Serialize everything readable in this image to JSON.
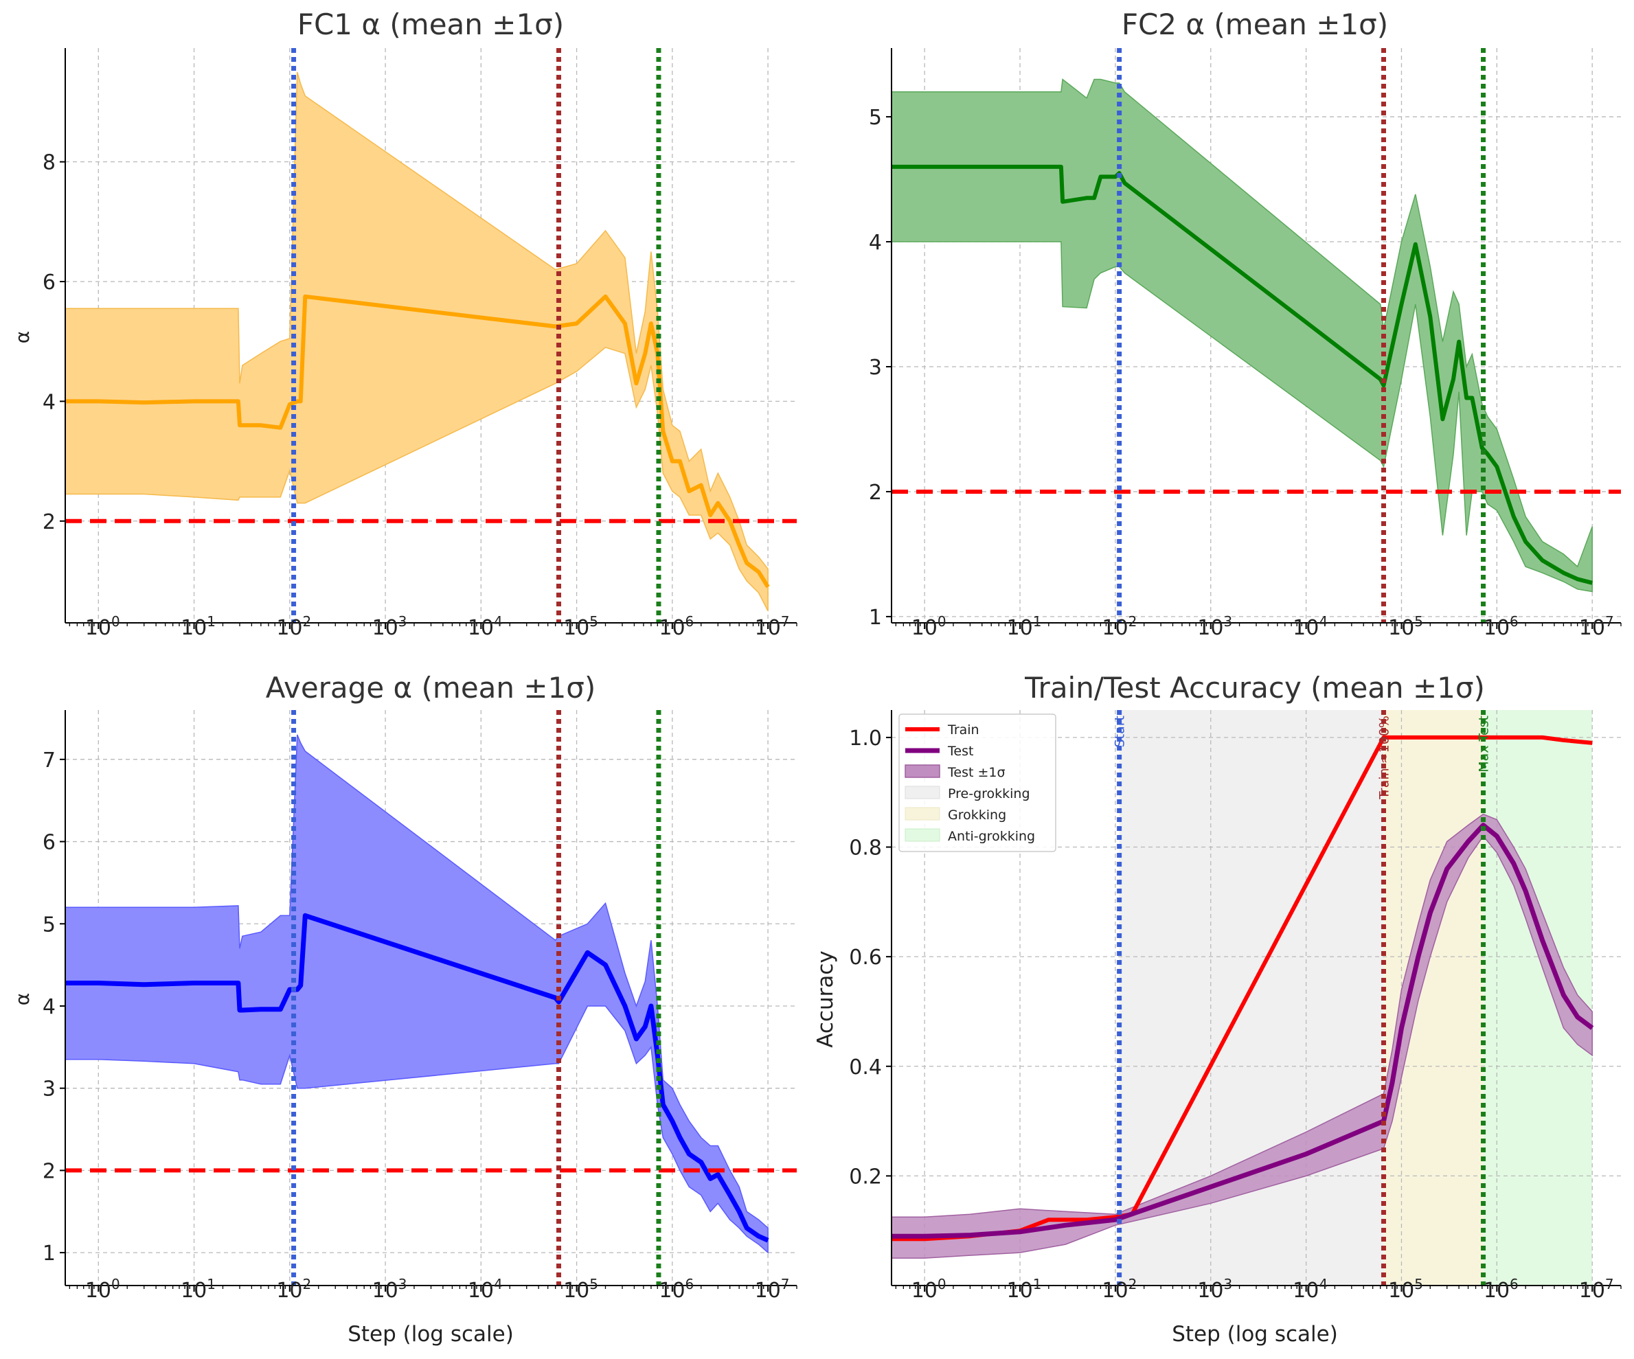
{
  "colors": {
    "fc1": "#ffa500",
    "fc1_band": "#ffd58a",
    "fc2": "#007f00",
    "fc2_band": "#8dc68d",
    "avg": "#0000ff",
    "avg_band": "#8c8cff",
    "train": "#ff0000",
    "test": "#800080",
    "test_band": "#c08ec0",
    "ref_line": "#ff0000",
    "start_line": "#3a5fd6",
    "train100_line": "#a52a2a",
    "maxtest_line": "#1a7f1a",
    "pre_shade": "#f0f0f0",
    "grok_shade": "#f8f4dc",
    "anti_shade": "#e2fae2"
  },
  "chart_data": [
    {
      "id": "fc1",
      "type": "line",
      "title": "FC1 α (mean ±1σ)",
      "xlabel": "",
      "ylabel": "α",
      "xscale": "log",
      "xlim": [
        0.45,
        20000000
      ],
      "ylim": [
        0.3,
        9.9
      ],
      "yticks": [
        2,
        4,
        6,
        8
      ],
      "xtick_labels": [
        "10",
        "10",
        "10",
        "10",
        "10",
        "10",
        "10",
        "10"
      ],
      "xtick_exponents": [
        "0",
        "1",
        "2",
        "3",
        "4",
        "5",
        "6",
        "7"
      ],
      "reference_y": 2,
      "vlines": [
        110,
        65000,
        720000
      ],
      "series": [
        {
          "name": "FC1 α mean",
          "x": [
            0.45,
            1,
            3,
            10,
            29,
            30,
            32,
            50,
            80,
            100,
            120,
            130,
            145,
            60000,
            100000,
            200000,
            320000,
            420000,
            520000,
            600000,
            700000,
            800000,
            1000000,
            1200000,
            1500000,
            2000000,
            2500000,
            3000000,
            4000000,
            5000000,
            6000000,
            8000000,
            10000000
          ],
          "y": [
            4.0,
            4.0,
            3.98,
            4.0,
            4.0,
            3.6,
            3.6,
            3.6,
            3.56,
            3.95,
            4.0,
            4.0,
            5.75,
            5.25,
            5.3,
            5.75,
            5.3,
            4.3,
            4.8,
            5.3,
            4.8,
            3.5,
            3.0,
            3.0,
            2.5,
            2.6,
            2.1,
            2.3,
            2.0,
            1.6,
            1.3,
            1.15,
            0.9
          ],
          "lower": [
            2.45,
            2.45,
            2.45,
            2.4,
            2.35,
            2.4,
            2.4,
            2.4,
            2.4,
            2.85,
            2.3,
            2.3,
            2.3,
            4.3,
            4.5,
            4.9,
            4.8,
            3.9,
            4.2,
            4.6,
            3.8,
            2.8,
            2.5,
            2.4,
            2.1,
            2.1,
            1.7,
            1.8,
            1.6,
            1.2,
            1.0,
            0.8,
            0.5
          ],
          "upper": [
            5.55,
            5.55,
            5.55,
            5.55,
            5.55,
            4.3,
            4.6,
            4.8,
            5.0,
            5.05,
            9.5,
            9.3,
            9.1,
            6.2,
            6.3,
            6.85,
            6.4,
            4.8,
            5.5,
            6.5,
            5.5,
            4.2,
            3.6,
            3.5,
            3.0,
            3.2,
            2.5,
            2.8,
            2.4,
            2.0,
            1.6,
            1.4,
            1.2
          ]
        }
      ]
    },
    {
      "id": "fc2",
      "type": "line",
      "title": "FC2 α (mean ±1σ)",
      "xlabel": "",
      "ylabel": "",
      "xscale": "log",
      "xlim": [
        0.45,
        20000000
      ],
      "ylim": [
        0.95,
        5.55
      ],
      "yticks": [
        1,
        2,
        3,
        4,
        5
      ],
      "xtick_labels": [
        "10",
        "10",
        "10",
        "10",
        "10",
        "10",
        "10",
        "10"
      ],
      "xtick_exponents": [
        "0",
        "1",
        "2",
        "3",
        "4",
        "5",
        "6",
        "7"
      ],
      "reference_y": 2,
      "vlines": [
        110,
        65000,
        720000
      ],
      "series": [
        {
          "name": "FC2 α mean",
          "x": [
            0.45,
            1,
            10,
            27,
            28,
            50,
            60,
            70,
            100,
            110,
            125,
            60000,
            65000,
            100000,
            140000,
            200000,
            270000,
            350000,
            400000,
            480000,
            550000,
            700000,
            800000,
            1000000,
            1500000,
            2000000,
            3000000,
            5000000,
            7000000,
            10000000
          ],
          "y": [
            4.6,
            4.6,
            4.6,
            4.6,
            4.32,
            4.35,
            4.35,
            4.52,
            4.52,
            4.55,
            4.47,
            2.9,
            2.85,
            3.5,
            3.98,
            3.4,
            2.58,
            2.9,
            3.2,
            2.75,
            2.75,
            2.35,
            2.3,
            2.2,
            1.8,
            1.6,
            1.45,
            1.35,
            1.3,
            1.27
          ],
          "lower": [
            4.0,
            4.0,
            4.0,
            4.0,
            3.48,
            3.47,
            3.7,
            3.75,
            3.8,
            3.8,
            3.75,
            2.25,
            2.2,
            2.9,
            3.5,
            2.6,
            1.65,
            2.3,
            2.8,
            1.65,
            2.0,
            2.0,
            1.9,
            1.85,
            1.6,
            1.4,
            1.35,
            1.28,
            1.22,
            1.2
          ],
          "upper": [
            5.2,
            5.2,
            5.2,
            5.2,
            5.3,
            5.15,
            5.3,
            5.3,
            5.27,
            5.27,
            5.2,
            3.5,
            3.3,
            4.0,
            4.38,
            3.8,
            3.2,
            3.6,
            3.5,
            3.0,
            3.1,
            2.7,
            2.6,
            2.5,
            2.1,
            1.8,
            1.6,
            1.5,
            1.4,
            1.72
          ]
        }
      ]
    },
    {
      "id": "avg",
      "type": "line",
      "title": "Average α (mean ±1σ)",
      "xlabel": "Step (log scale)",
      "ylabel": "α",
      "xscale": "log",
      "xlim": [
        0.45,
        20000000
      ],
      "ylim": [
        0.6,
        7.6
      ],
      "yticks": [
        1,
        2,
        3,
        4,
        5,
        6,
        7
      ],
      "xtick_labels": [
        "10",
        "10",
        "10",
        "10",
        "10",
        "10",
        "10",
        "10"
      ],
      "xtick_exponents": [
        "0",
        "1",
        "2",
        "3",
        "4",
        "5",
        "6",
        "7"
      ],
      "reference_y": 2,
      "vlines": [
        110,
        65000,
        720000
      ],
      "series": [
        {
          "name": "Average α mean",
          "x": [
            0.45,
            1,
            3,
            10,
            29,
            30,
            32,
            50,
            80,
            100,
            120,
            130,
            145,
            60000,
            65000,
            130000,
            200000,
            320000,
            420000,
            520000,
            600000,
            700000,
            800000,
            1000000,
            1200000,
            1500000,
            2000000,
            2500000,
            3000000,
            4000000,
            5000000,
            6000000,
            8000000,
            10000000
          ],
          "y": [
            4.28,
            4.28,
            4.26,
            4.28,
            4.28,
            3.95,
            3.95,
            3.96,
            3.96,
            4.2,
            4.2,
            4.25,
            5.1,
            4.1,
            4.05,
            4.65,
            4.5,
            4.0,
            3.6,
            3.75,
            4.0,
            3.4,
            2.8,
            2.6,
            2.4,
            2.2,
            2.1,
            1.9,
            1.95,
            1.7,
            1.5,
            1.3,
            1.2,
            1.15
          ],
          "lower": [
            3.35,
            3.35,
            3.33,
            3.3,
            3.2,
            3.1,
            3.1,
            3.05,
            3.05,
            3.4,
            3.0,
            3.0,
            3.0,
            3.3,
            3.3,
            4.0,
            4.0,
            3.7,
            3.3,
            3.4,
            3.5,
            2.8,
            2.4,
            2.2,
            2.0,
            1.8,
            1.7,
            1.5,
            1.6,
            1.4,
            1.3,
            1.2,
            1.1,
            1.0
          ],
          "upper": [
            5.2,
            5.2,
            5.2,
            5.2,
            5.22,
            4.7,
            4.85,
            4.9,
            5.1,
            5.1,
            7.3,
            7.2,
            7.1,
            4.8,
            4.85,
            5.0,
            5.25,
            4.4,
            4.0,
            4.3,
            4.8,
            4.0,
            3.1,
            3.0,
            2.8,
            2.6,
            2.4,
            2.3,
            2.3,
            2.0,
            1.8,
            1.5,
            1.4,
            1.3
          ]
        }
      ]
    },
    {
      "id": "acc",
      "type": "line",
      "title": "Train/Test Accuracy (mean ±1σ)",
      "xlabel": "Step (log scale)",
      "ylabel": "Accuracy",
      "xscale": "log",
      "xlim": [
        0.45,
        20000000
      ],
      "ylim": [
        0.0,
        1.05
      ],
      "yticks": [
        0.2,
        0.4,
        0.6,
        0.8,
        1.0
      ],
      "ytick_labels": [
        "0.2",
        "0.4",
        "0.6",
        "0.8",
        "1.0"
      ],
      "xtick_labels": [
        "10",
        "10",
        "10",
        "10",
        "10",
        "10",
        "10",
        "10"
      ],
      "xtick_exponents": [
        "0",
        "1",
        "2",
        "3",
        "4",
        "5",
        "6",
        "7"
      ],
      "regions": [
        {
          "name": "Pre-grokking",
          "x0": 110,
          "x1": 65000
        },
        {
          "name": "Grokking",
          "x0": 65000,
          "x1": 720000
        },
        {
          "name": "Anti-grokking",
          "x0": 720000,
          "x1": 10000000
        }
      ],
      "vlines": [
        110,
        65000,
        720000
      ],
      "vline_labels": [
        "Start",
        "Train ≈100%",
        "Max Test"
      ],
      "legend": [
        "Train",
        "Test",
        "Test ±1σ",
        "Pre-grokking",
        "Grokking",
        "Anti-grokking"
      ],
      "legend_position": "upper-left",
      "series": [
        {
          "name": "Train",
          "x": [
            0.45,
            1,
            3,
            10,
            20,
            30,
            50,
            100,
            150,
            65000,
            100000,
            1000000,
            3000000,
            5000000,
            10000000
          ],
          "y": [
            0.085,
            0.085,
            0.09,
            0.1,
            0.12,
            0.12,
            0.12,
            0.125,
            0.13,
            1.0,
            1.0,
            1.0,
            1.0,
            0.995,
            0.99
          ]
        },
        {
          "name": "Test",
          "x": [
            0.45,
            1,
            3,
            10,
            30,
            100,
            1000,
            10000,
            65000,
            80000,
            100000,
            150000,
            200000,
            300000,
            500000,
            720000,
            1000000,
            1500000,
            2000000,
            3000000,
            5000000,
            7000000,
            10000000
          ],
          "y": [
            0.09,
            0.09,
            0.092,
            0.098,
            0.11,
            0.12,
            0.18,
            0.24,
            0.3,
            0.37,
            0.47,
            0.6,
            0.68,
            0.76,
            0.81,
            0.84,
            0.82,
            0.77,
            0.72,
            0.63,
            0.53,
            0.49,
            0.47
          ],
          "lower": [
            0.05,
            0.05,
            0.055,
            0.06,
            0.075,
            0.11,
            0.15,
            0.2,
            0.25,
            0.3,
            0.38,
            0.52,
            0.6,
            0.7,
            0.78,
            0.82,
            0.79,
            0.73,
            0.67,
            0.58,
            0.47,
            0.44,
            0.42
          ],
          "upper": [
            0.125,
            0.125,
            0.13,
            0.14,
            0.135,
            0.13,
            0.2,
            0.28,
            0.35,
            0.43,
            0.54,
            0.66,
            0.74,
            0.81,
            0.84,
            0.86,
            0.85,
            0.8,
            0.76,
            0.68,
            0.58,
            0.53,
            0.5
          ]
        }
      ]
    }
  ]
}
